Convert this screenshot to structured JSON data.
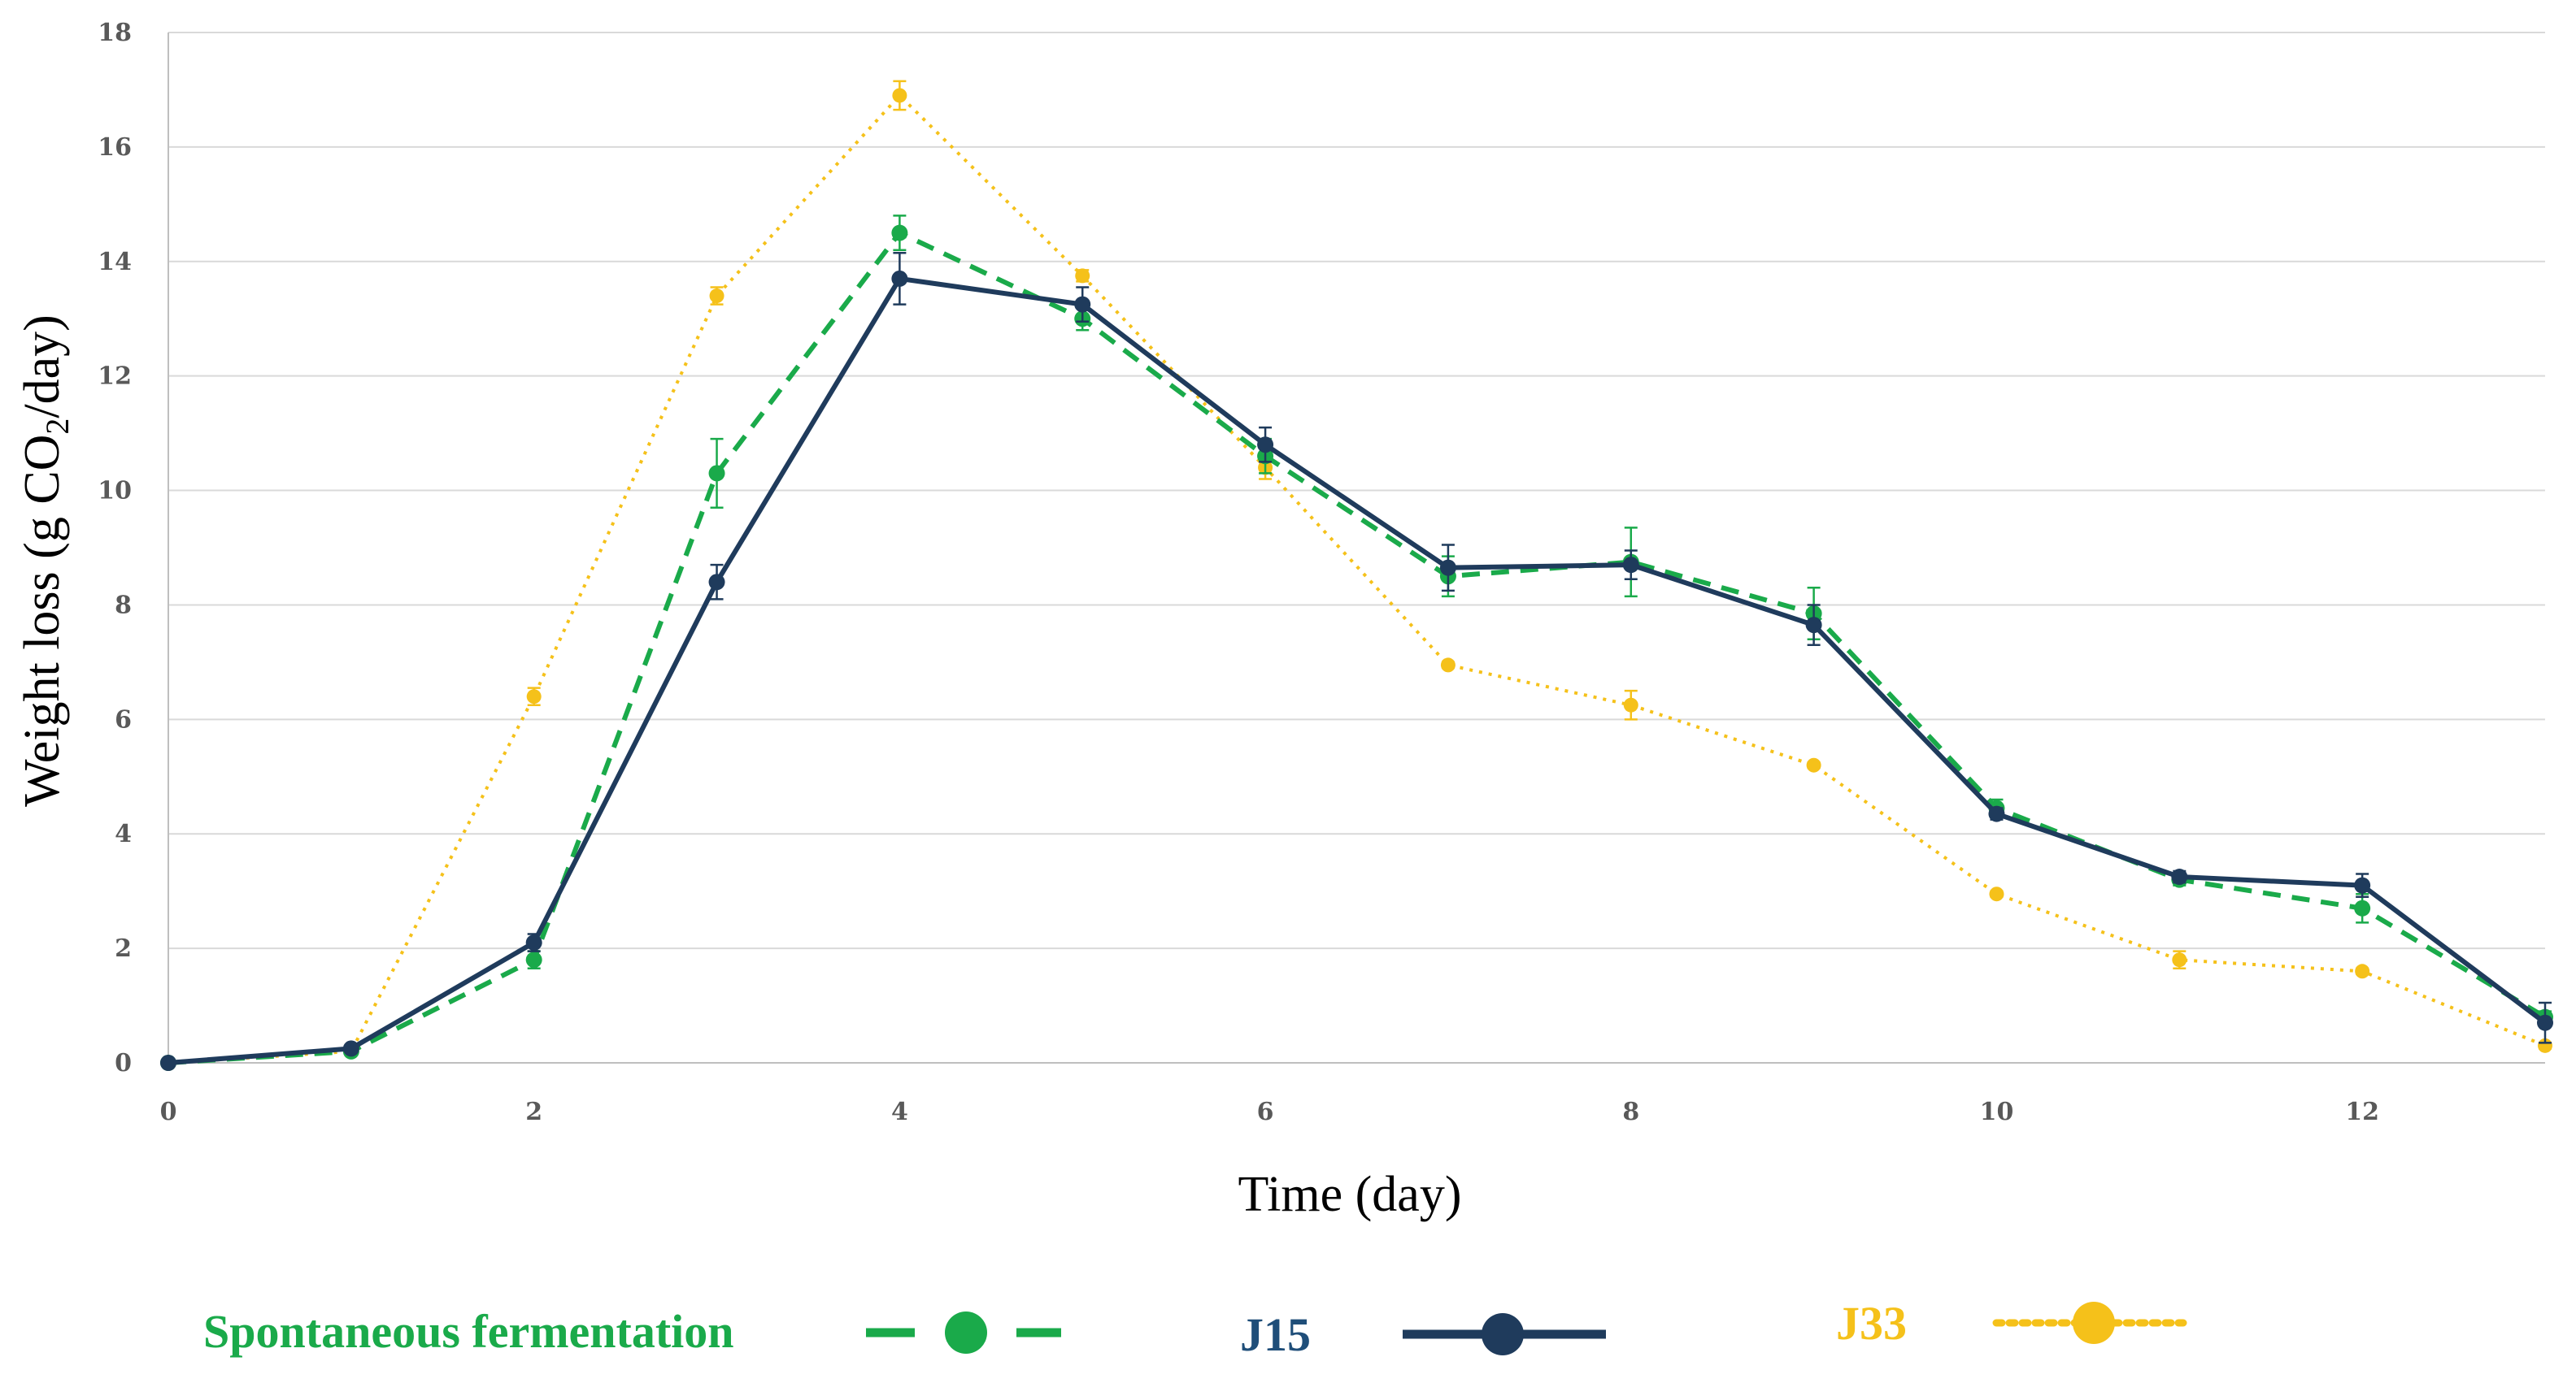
{
  "chart_data": {
    "type": "line",
    "title": "",
    "xlabel": "Time (day)",
    "ylabel_main": "Weight loss (g CO",
    "ylabel_sub": "2",
    "ylabel_tail": "/day)",
    "xlim": [
      0,
      13
    ],
    "ylim": [
      0,
      18
    ],
    "x_ticks": [
      0,
      2,
      4,
      6,
      8,
      10,
      12
    ],
    "y_ticks": [
      0,
      2,
      4,
      6,
      8,
      10,
      12,
      14,
      16,
      18
    ],
    "grid": "horizontal",
    "legend_position": "bottom",
    "x": [
      0,
      1,
      2,
      3,
      4,
      5,
      6,
      7,
      8,
      9,
      10,
      11,
      12,
      13
    ],
    "series": [
      {
        "name": "Spontaneous fermentation",
        "color": "#1aaa4a",
        "line_style": "dashed",
        "values": [
          0,
          0.2,
          1.8,
          10.3,
          14.5,
          13.0,
          10.6,
          8.5,
          8.75,
          7.85,
          4.45,
          3.2,
          2.7,
          0.8
        ],
        "errors": [
          0,
          0.05,
          0.15,
          0.6,
          0.3,
          0.2,
          0.3,
          0.35,
          0.6,
          0.45,
          0.15,
          0.1,
          0.25,
          0.1
        ]
      },
      {
        "name": "J15",
        "color": "#1f3b5c",
        "line_style": "solid",
        "values": [
          0,
          0.25,
          2.1,
          8.4,
          13.7,
          13.25,
          10.8,
          8.65,
          8.7,
          7.65,
          4.35,
          3.25,
          3.1,
          0.7
        ],
        "errors": [
          0,
          0.05,
          0.15,
          0.3,
          0.45,
          0.3,
          0.3,
          0.4,
          0.25,
          0.35,
          0.1,
          0.1,
          0.2,
          0.35
        ]
      },
      {
        "name": "J33",
        "color": "#f5c11a",
        "line_style": "dotted",
        "values": [
          0,
          0.2,
          6.4,
          13.4,
          16.9,
          13.75,
          10.4,
          6.95,
          6.25,
          5.2,
          2.95,
          1.8,
          1.6,
          0.3
        ],
        "errors": [
          0,
          0.03,
          0.15,
          0.15,
          0.25,
          0.1,
          0.2,
          0.05,
          0.25,
          0.05,
          0.05,
          0.15,
          0.05,
          0.05
        ]
      }
    ]
  }
}
